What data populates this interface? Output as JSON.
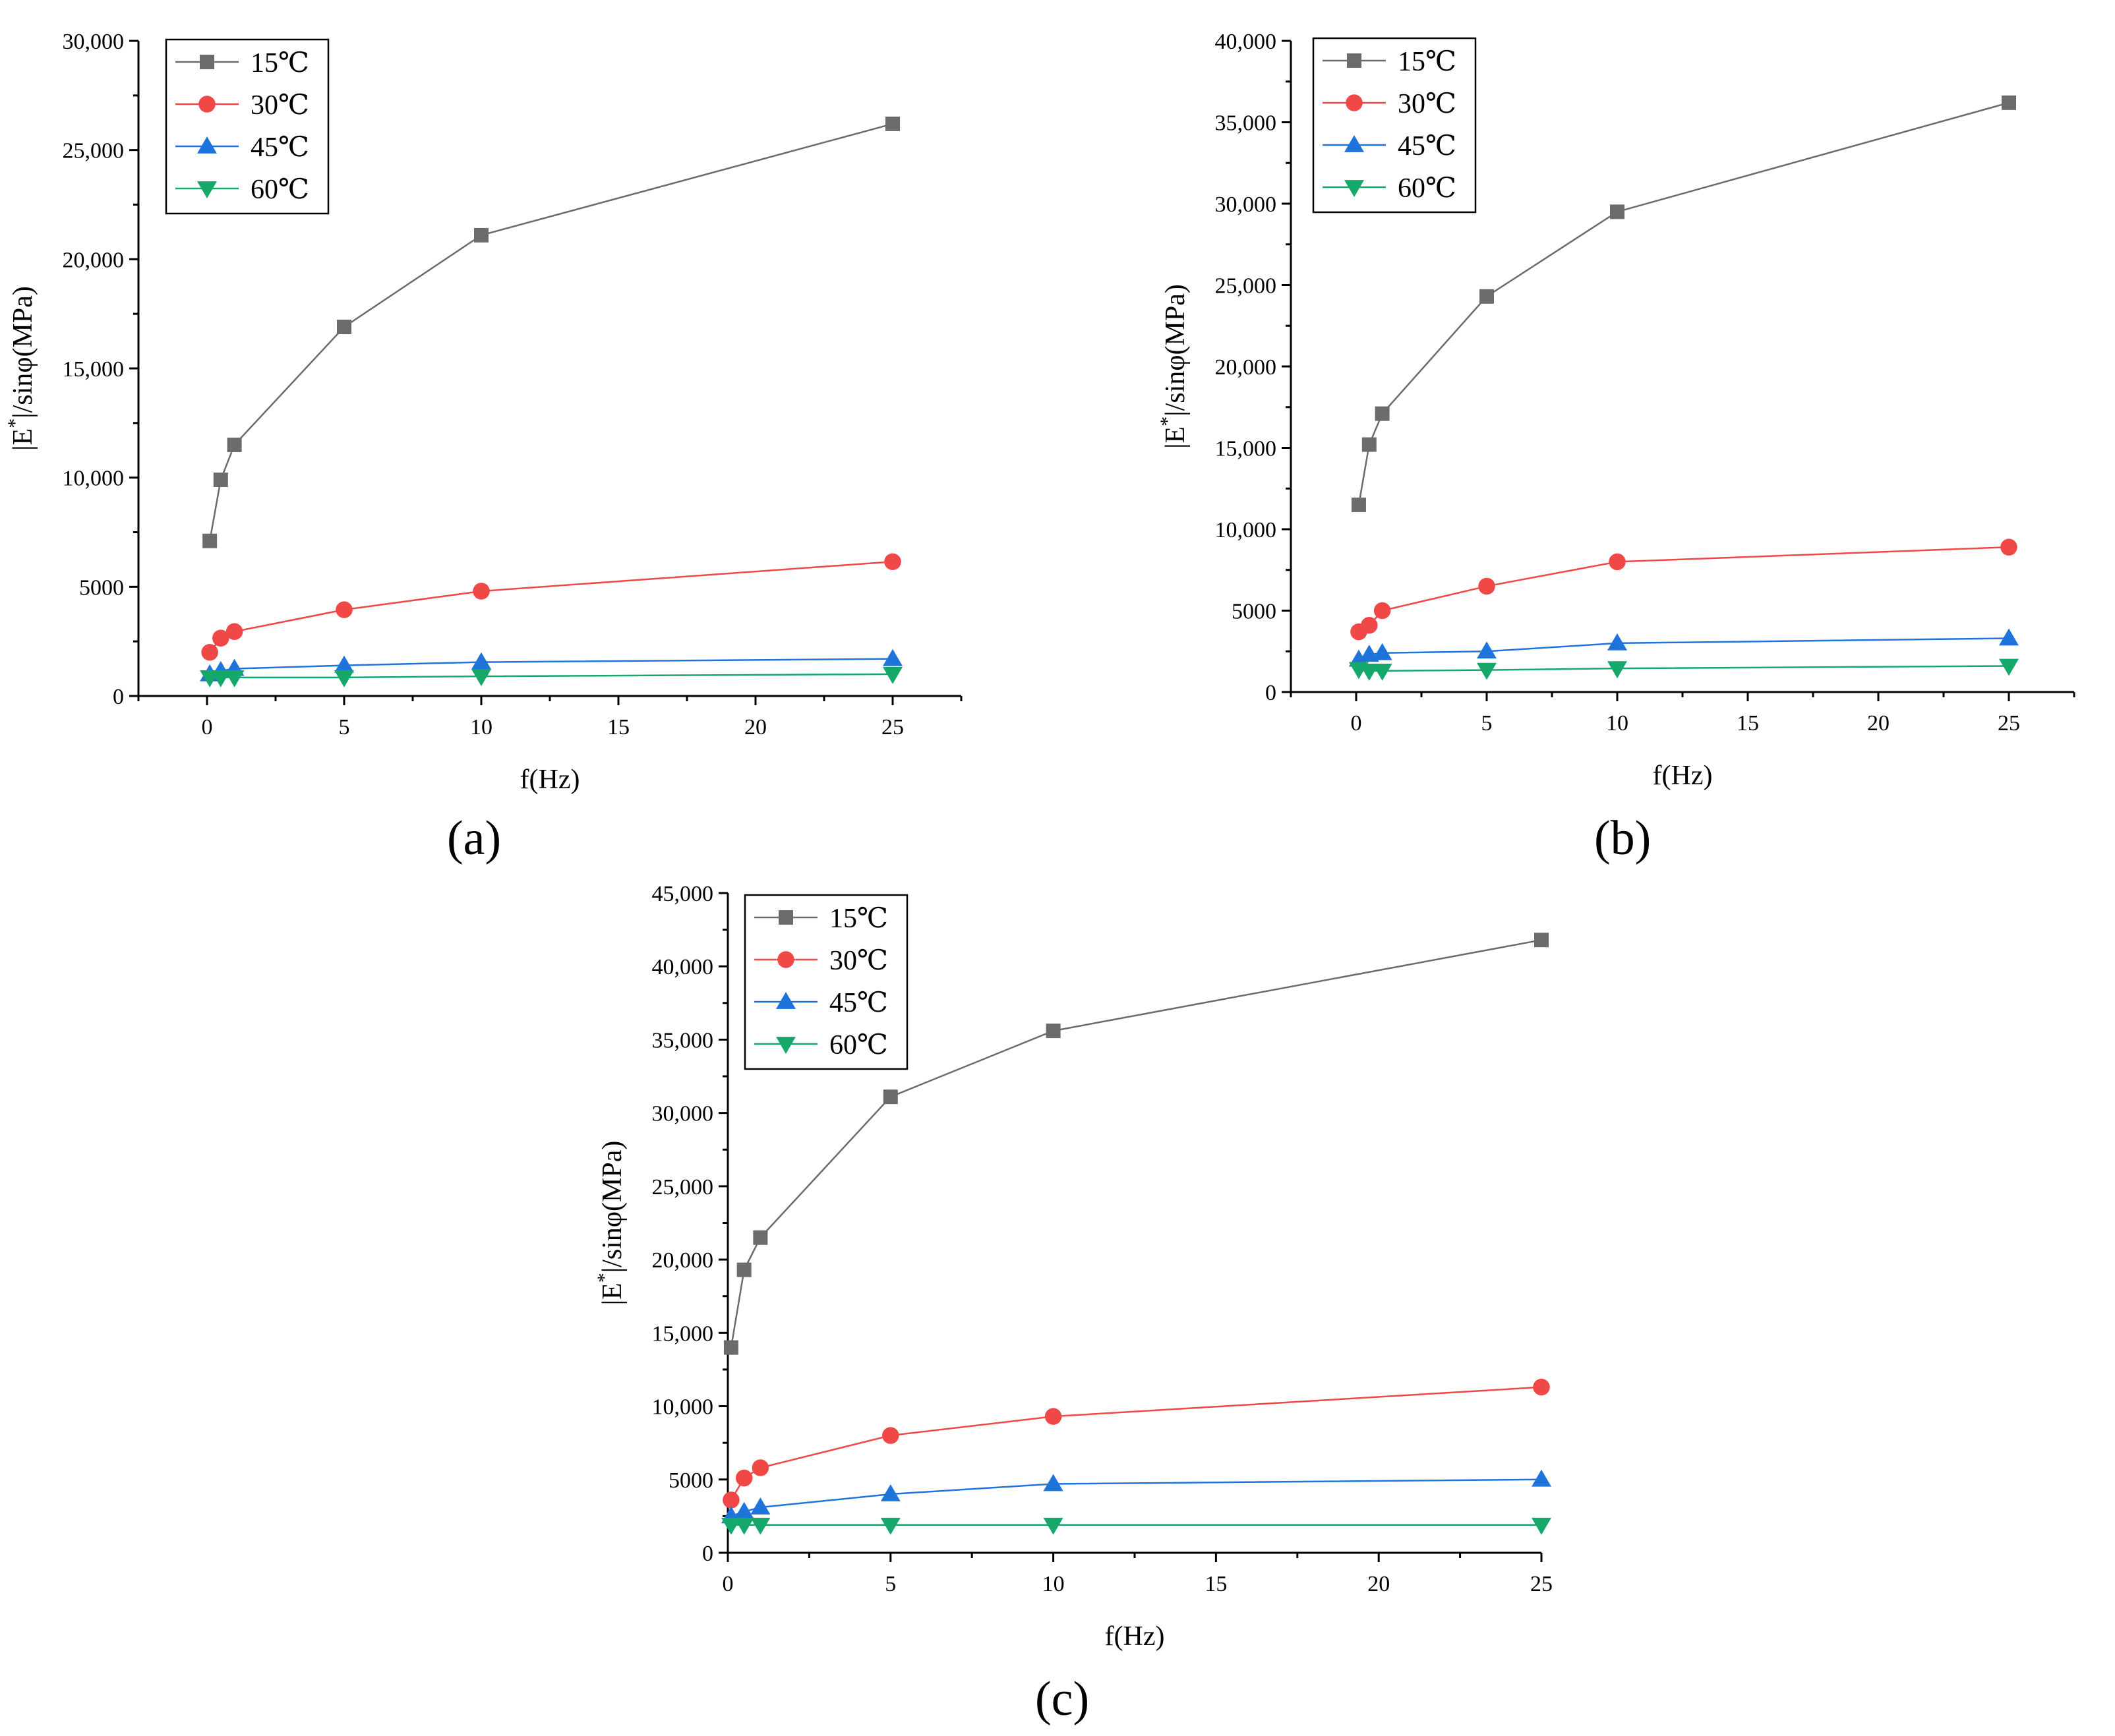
{
  "figure": {
    "panel_labels": [
      "(a)",
      "(b)",
      "(c)"
    ]
  },
  "colors": {
    "15C": "#6b6b6b",
    "30C": "#f04747",
    "45C": "#1f74dc",
    "60C": "#15a86a",
    "axis": "#000000"
  },
  "chart_data": [
    {
      "type": "line",
      "panel": "(a)",
      "xlabel": "f(Hz)",
      "ylabel_parts": {
        "prefix": "|E",
        "sup": "*",
        "suffix": "|/sinφ(MPa)"
      },
      "xlim": [
        -2.5,
        27.5
      ],
      "ylim": [
        0,
        30000
      ],
      "xticks": [
        0,
        5,
        10,
        15,
        20,
        25
      ],
      "xtick_labels": [
        "0",
        "5",
        "10",
        "15",
        "20",
        "25"
      ],
      "yticks": [
        0,
        5000,
        10000,
        15000,
        20000,
        25000,
        30000
      ],
      "ytick_labels": [
        "0",
        "5000",
        "10,000",
        "15,000",
        "20,000",
        "25,000",
        "30,000"
      ],
      "x": [
        0.1,
        0.5,
        1,
        5,
        10,
        25
      ],
      "legend_position": "top-left",
      "series": [
        {
          "name": "15℃",
          "marker": "square",
          "values": [
            7100,
            9900,
            11500,
            16900,
            21100,
            26200
          ]
        },
        {
          "name": "30℃",
          "marker": "circle",
          "values": [
            2000,
            2650,
            2950,
            3950,
            4800,
            6150
          ]
        },
        {
          "name": "45℃",
          "marker": "triangle-up",
          "values": [
            1000,
            1150,
            1250,
            1400,
            1550,
            1700
          ]
        },
        {
          "name": "60℃",
          "marker": "triangle-down",
          "values": [
            850,
            850,
            850,
            850,
            900,
            1000
          ]
        }
      ]
    },
    {
      "type": "line",
      "panel": "(b)",
      "xlabel": "f(Hz)",
      "ylabel_parts": {
        "prefix": "|E",
        "sup": "*",
        "suffix": "|/sinφ(MPa)"
      },
      "xlim": [
        -2.5,
        27.5
      ],
      "ylim": [
        0,
        40000
      ],
      "xticks": [
        0,
        5,
        10,
        15,
        20,
        25
      ],
      "xtick_labels": [
        "0",
        "5",
        "10",
        "15",
        "20",
        "25"
      ],
      "yticks": [
        0,
        5000,
        10000,
        15000,
        20000,
        25000,
        30000,
        35000,
        40000
      ],
      "ytick_labels": [
        "0",
        "5000",
        "10,000",
        "15,000",
        "20,000",
        "25,000",
        "30,000",
        "35,000",
        "40,000"
      ],
      "x": [
        0.1,
        0.5,
        1,
        5,
        10,
        25
      ],
      "legend_position": "top-left",
      "series": [
        {
          "name": "15℃",
          "marker": "square",
          "values": [
            11500,
            15200,
            17100,
            24300,
            29500,
            36200
          ]
        },
        {
          "name": "30℃",
          "marker": "circle",
          "values": [
            3700,
            4100,
            5000,
            6500,
            8000,
            8900
          ]
        },
        {
          "name": "45℃",
          "marker": "triangle-up",
          "values": [
            2000,
            2300,
            2400,
            2500,
            3000,
            3300
          ]
        },
        {
          "name": "60℃",
          "marker": "triangle-down",
          "values": [
            1400,
            1300,
            1300,
            1350,
            1450,
            1600
          ]
        }
      ]
    },
    {
      "type": "line",
      "panel": "(c)",
      "xlabel": "f(Hz)",
      "ylabel_parts": {
        "prefix": "|E",
        "sup": "*",
        "suffix": "|/sinφ(MPa)"
      },
      "xlim": [
        0,
        25
      ],
      "ylim": [
        0,
        45000
      ],
      "xticks": [
        0,
        5,
        10,
        15,
        20,
        25
      ],
      "xtick_labels": [
        "0",
        "5",
        "10",
        "15",
        "20",
        "25"
      ],
      "yticks": [
        0,
        5000,
        10000,
        15000,
        20000,
        25000,
        30000,
        35000,
        40000,
        45000
      ],
      "ytick_labels": [
        "0",
        "5000",
        "10,000",
        "15,000",
        "20,000",
        "25,000",
        "30,000",
        "35,000",
        "40,000",
        "45,000"
      ],
      "x": [
        0.1,
        0.5,
        1,
        5,
        10,
        25
      ],
      "legend_position": "top-left",
      "series": [
        {
          "name": "15℃",
          "marker": "square",
          "values": [
            14000,
            19300,
            21500,
            31100,
            35600,
            41800
          ]
        },
        {
          "name": "30℃",
          "marker": "circle",
          "values": [
            3600,
            5100,
            5800,
            8000,
            9300,
            11300
          ]
        },
        {
          "name": "45℃",
          "marker": "triangle-up",
          "values": [
            2500,
            2800,
            3100,
            4000,
            4700,
            5000
          ]
        },
        {
          "name": "60℃",
          "marker": "triangle-down",
          "values": [
            1900,
            1900,
            1900,
            1900,
            1900,
            1900
          ]
        }
      ]
    }
  ]
}
